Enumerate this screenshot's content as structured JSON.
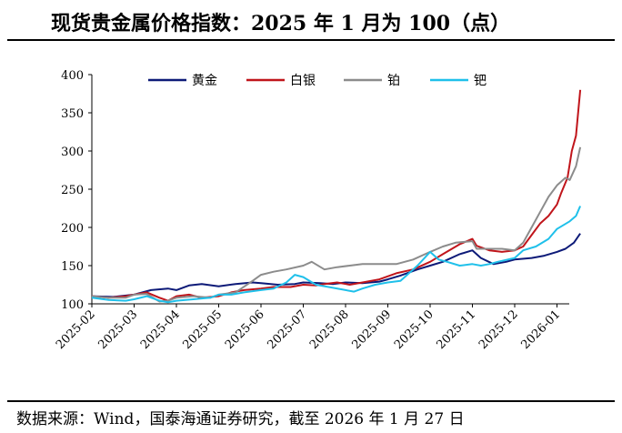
{
  "title": "现货贵金属价格指数：2025 年 1 月为 100（点）",
  "source": "数据来源：Wind，国泰海通证券研究，截至 2026 年 1 月 27 日",
  "chart_data": {
    "type": "line",
    "title": "现货贵金属价格指数：2025 年 1 月为 100（点）",
    "xlabel": "",
    "ylabel": "",
    "ylim": [
      100,
      400
    ],
    "yticks": [
      100,
      150,
      200,
      250,
      300,
      350,
      400
    ],
    "xticks": [
      "2025-02",
      "2025-03",
      "2025-04",
      "2025-05",
      "2025-06",
      "2025-07",
      "2025-08",
      "2025-09",
      "2025-10",
      "2025-11",
      "2025-12",
      "2026-01"
    ],
    "x_range_months": [
      0,
      11.55
    ],
    "legend_position": "top",
    "grid": false,
    "series": [
      {
        "name": "黄金",
        "color": "#0d1a78",
        "points": [
          [
            0,
            110
          ],
          [
            0.5,
            109
          ],
          [
            1,
            112
          ],
          [
            1.4,
            118
          ],
          [
            1.8,
            120
          ],
          [
            2,
            118
          ],
          [
            2.3,
            124
          ],
          [
            2.6,
            126
          ],
          [
            3,
            123
          ],
          [
            3.4,
            126
          ],
          [
            3.8,
            128
          ],
          [
            4,
            127
          ],
          [
            4.4,
            125
          ],
          [
            4.8,
            126
          ],
          [
            5,
            128
          ],
          [
            5.4,
            127
          ],
          [
            5.7,
            126
          ],
          [
            6,
            128
          ],
          [
            6.4,
            127
          ],
          [
            6.8,
            129
          ],
          [
            7,
            132
          ],
          [
            7.3,
            137
          ],
          [
            7.7,
            145
          ],
          [
            8,
            150
          ],
          [
            8.3,
            155
          ],
          [
            8.7,
            165
          ],
          [
            9,
            170
          ],
          [
            9.2,
            160
          ],
          [
            9.5,
            152
          ],
          [
            9.8,
            155
          ],
          [
            10,
            158
          ],
          [
            10.4,
            160
          ],
          [
            10.7,
            163
          ],
          [
            11,
            168
          ],
          [
            11.2,
            172
          ],
          [
            11.4,
            180
          ],
          [
            11.55,
            192
          ]
        ]
      },
      {
        "name": "白银",
        "color": "#c0151b",
        "points": [
          [
            0,
            110
          ],
          [
            0.4,
            108
          ],
          [
            0.8,
            110
          ],
          [
            1,
            112
          ],
          [
            1.3,
            115
          ],
          [
            1.6,
            108
          ],
          [
            1.8,
            104
          ],
          [
            2,
            110
          ],
          [
            2.3,
            112
          ],
          [
            2.6,
            108
          ],
          [
            3,
            110
          ],
          [
            3.3,
            115
          ],
          [
            3.6,
            118
          ],
          [
            4,
            120
          ],
          [
            4.3,
            122
          ],
          [
            4.7,
            122
          ],
          [
            5,
            125
          ],
          [
            5.3,
            124
          ],
          [
            5.5,
            126
          ],
          [
            5.8,
            128
          ],
          [
            6.1,
            125
          ],
          [
            6.4,
            128
          ],
          [
            6.8,
            132
          ],
          [
            7.2,
            140
          ],
          [
            7.6,
            145
          ],
          [
            8,
            155
          ],
          [
            8.3,
            165
          ],
          [
            8.7,
            178
          ],
          [
            9,
            185
          ],
          [
            9.1,
            176
          ],
          [
            9.4,
            170
          ],
          [
            9.7,
            168
          ],
          [
            10,
            170
          ],
          [
            10.2,
            175
          ],
          [
            10.4,
            190
          ],
          [
            10.6,
            205
          ],
          [
            10.8,
            215
          ],
          [
            11,
            230
          ],
          [
            11.1,
            245
          ],
          [
            11.25,
            265
          ],
          [
            11.35,
            300
          ],
          [
            11.45,
            320
          ],
          [
            11.55,
            380
          ]
        ]
      },
      {
        "name": "铂",
        "color": "#8c8c8c",
        "points": [
          [
            0,
            110
          ],
          [
            0.4,
            108
          ],
          [
            0.8,
            108
          ],
          [
            1,
            112
          ],
          [
            1.3,
            113
          ],
          [
            1.6,
            103
          ],
          [
            1.8,
            104
          ],
          [
            2,
            108
          ],
          [
            2.4,
            110
          ],
          [
            2.8,
            108
          ],
          [
            3,
            112
          ],
          [
            3.4,
            115
          ],
          [
            3.8,
            130
          ],
          [
            4,
            138
          ],
          [
            4.3,
            142
          ],
          [
            4.6,
            145
          ],
          [
            5,
            150
          ],
          [
            5.2,
            155
          ],
          [
            5.5,
            145
          ],
          [
            5.8,
            148
          ],
          [
            6.1,
            150
          ],
          [
            6.4,
            152
          ],
          [
            6.8,
            152
          ],
          [
            7.2,
            152
          ],
          [
            7.6,
            158
          ],
          [
            8,
            168
          ],
          [
            8.3,
            175
          ],
          [
            8.6,
            180
          ],
          [
            9,
            182
          ],
          [
            9.1,
            172
          ],
          [
            9.4,
            172
          ],
          [
            9.7,
            172
          ],
          [
            10,
            170
          ],
          [
            10.2,
            180
          ],
          [
            10.4,
            200
          ],
          [
            10.6,
            220
          ],
          [
            10.8,
            240
          ],
          [
            11,
            255
          ],
          [
            11.2,
            265
          ],
          [
            11.3,
            262
          ],
          [
            11.45,
            280
          ],
          [
            11.55,
            305
          ]
        ]
      },
      {
        "name": "钯",
        "color": "#1fc0ea",
        "points": [
          [
            0,
            108
          ],
          [
            0.4,
            105
          ],
          [
            0.8,
            104
          ],
          [
            1,
            106
          ],
          [
            1.3,
            110
          ],
          [
            1.6,
            104
          ],
          [
            1.8,
            102
          ],
          [
            2,
            104
          ],
          [
            2.4,
            106
          ],
          [
            2.8,
            108
          ],
          [
            3,
            112
          ],
          [
            3.3,
            112
          ],
          [
            3.6,
            115
          ],
          [
            4,
            118
          ],
          [
            4.3,
            120
          ],
          [
            4.6,
            128
          ],
          [
            4.8,
            138
          ],
          [
            5,
            135
          ],
          [
            5.3,
            125
          ],
          [
            5.6,
            122
          ],
          [
            6,
            118
          ],
          [
            6.2,
            116
          ],
          [
            6.4,
            120
          ],
          [
            6.7,
            125
          ],
          [
            7,
            128
          ],
          [
            7.3,
            130
          ],
          [
            7.7,
            150
          ],
          [
            8,
            168
          ],
          [
            8.2,
            158
          ],
          [
            8.4,
            155
          ],
          [
            8.7,
            150
          ],
          [
            9,
            152
          ],
          [
            9.2,
            150
          ],
          [
            9.4,
            152
          ],
          [
            9.6,
            155
          ],
          [
            10,
            160
          ],
          [
            10.2,
            170
          ],
          [
            10.5,
            175
          ],
          [
            10.8,
            185
          ],
          [
            11,
            198
          ],
          [
            11.3,
            208
          ],
          [
            11.45,
            215
          ],
          [
            11.55,
            228
          ]
        ]
      }
    ]
  }
}
